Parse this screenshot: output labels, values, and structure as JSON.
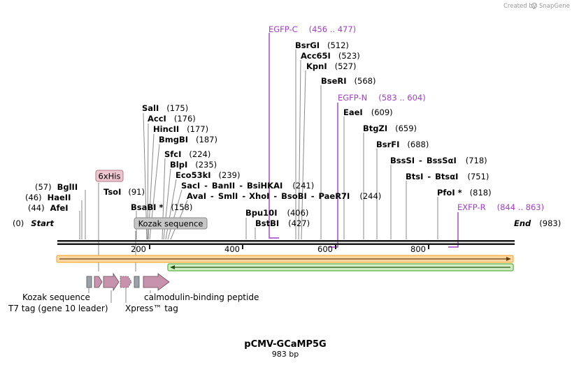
{
  "brand": {
    "created_by": "Created by",
    "name": "SnapGene"
  },
  "plasmid": {
    "name": "pCMV-GCaMP5G",
    "length_label": "983 bp"
  },
  "ends": {
    "start_label": "Start",
    "start_pos": "(0)",
    "end_label": "End",
    "end_pos": "(983)"
  },
  "ruler": {
    "ticks": [
      "200",
      "400",
      "600",
      "800"
    ]
  },
  "enzymes": [
    {
      "name": "AfeI",
      "pos": "(44)"
    },
    {
      "name": "HaeII",
      "pos": "(46)"
    },
    {
      "name": "BglII",
      "pos": "(57)"
    },
    {
      "name": "TsoI",
      "pos": "(91)"
    },
    {
      "name": "BsaBI *",
      "pos": "(158)"
    },
    {
      "name": "SalI",
      "pos": "(175)"
    },
    {
      "name": "AccI",
      "pos": "(176)"
    },
    {
      "name": "HincII",
      "pos": "(177)"
    },
    {
      "name": "BmgBI",
      "pos": "(187)"
    },
    {
      "name": "SfcI",
      "pos": "(224)"
    },
    {
      "name": "BlpI",
      "pos": "(235)"
    },
    {
      "name": "Eco53kI",
      "pos": "(239)"
    },
    {
      "name": "SacI",
      "sep1": "-",
      "name2": "BanII",
      "sep2": "-",
      "name3": "BsiHKAI",
      "pos": "(241)"
    },
    {
      "name": "AvaI",
      "sep1": "-",
      "name2": "SmlI",
      "sep2": "-",
      "name3": "XhoI",
      "sep3": "-",
      "name4": "BsoBI",
      "sep4": "-",
      "name5": "PaeR7I",
      "pos": "(244)"
    },
    {
      "name": "Bpu10I",
      "pos": "(406)"
    },
    {
      "name": "BstBI",
      "pos": "(427)"
    },
    {
      "name": "BsrGI",
      "pos": "(512)"
    },
    {
      "name": "Acc65I",
      "pos": "(523)"
    },
    {
      "name": "KpnI",
      "pos": "(527)"
    },
    {
      "name": "BseRI",
      "pos": "(568)"
    },
    {
      "name": "EaeI",
      "pos": "(609)"
    },
    {
      "name": "BtgZI",
      "pos": "(659)"
    },
    {
      "name": "BsrFI",
      "pos": "(688)"
    },
    {
      "name": "BssSI",
      "sep1": "-",
      "name2": "BssSαI",
      "pos": "(718)"
    },
    {
      "name": "BtsI",
      "sep1": "-",
      "name2": "BtsαI",
      "pos": "(751)"
    },
    {
      "name": "PfoI *",
      "pos": "(818)"
    }
  ],
  "primers": [
    {
      "name": "EGFP-C",
      "range": "(456 .. 477)"
    },
    {
      "name": "EGFP-N",
      "range": "(583 .. 604)"
    },
    {
      "name": "EXFP-R",
      "range": "(844 .. 863)"
    }
  ],
  "boxed_labels": {
    "his": "6xHis",
    "kozak_box": "Kozak sequence"
  },
  "features": {
    "kozak": "Kozak sequence",
    "t7": "T7 tag (gene 10 leader)",
    "xpress": "Xpress™ tag",
    "cbp": "calmodulin-binding peptide"
  },
  "colors": {
    "primer": "#a13ec5",
    "feature_fill": "#c792ab",
    "feature_stroke": "#6b4658",
    "orf_orange": "#f3a21a",
    "orf_green": "#39a11c",
    "ruler": "#1a1a1a"
  }
}
